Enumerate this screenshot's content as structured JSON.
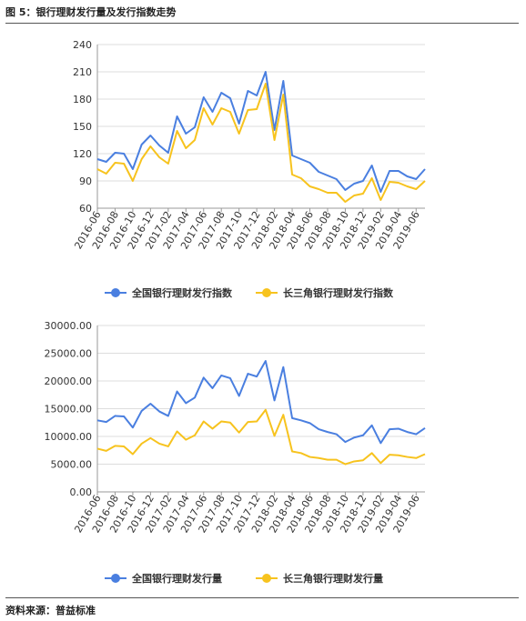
{
  "page": {
    "figure_title": "图 5：银行理财发行量及发行指数走势",
    "source": "资料来源：普益标准"
  },
  "colors": {
    "blue": "#4a7fe0",
    "yellow": "#f7c31e",
    "grid": "#dddddd",
    "axis": "#999999"
  },
  "chart_data": [
    {
      "type": "line",
      "title": "",
      "xlabel": "",
      "ylabel": "",
      "ylim": [
        60,
        240
      ],
      "yticks": [
        "60",
        "90",
        "120",
        "150",
        "180",
        "210",
        "240"
      ],
      "xtick_labels": [
        "2016-06",
        "2016-08",
        "2016-10",
        "2016-12",
        "2017-02",
        "2017-04",
        "2017-06",
        "2017-08",
        "2017-10",
        "2017-12",
        "2018-02",
        "2018-04",
        "2018-06",
        "2018-08",
        "2018-10",
        "2018-12",
        "2019-02",
        "2019-04",
        "2019-06"
      ],
      "x": [
        "2016-06",
        "2016-07",
        "2016-08",
        "2016-09",
        "2016-10",
        "2016-11",
        "2016-12",
        "2017-01",
        "2017-02",
        "2017-03",
        "2017-04",
        "2017-05",
        "2017-06",
        "2017-07",
        "2017-08",
        "2017-09",
        "2017-10",
        "2017-11",
        "2017-12",
        "2018-01",
        "2018-02",
        "2018-03",
        "2018-04",
        "2018-05",
        "2018-06",
        "2018-07",
        "2018-08",
        "2018-09",
        "2018-10",
        "2018-11",
        "2018-12",
        "2019-01",
        "2019-02",
        "2019-03",
        "2019-04",
        "2019-05",
        "2019-06",
        "2019-07"
      ],
      "series": [
        {
          "name": "全国银行理财发行指数",
          "color": "#4a7fe0",
          "values": [
            114,
            111,
            121,
            120,
            103,
            130,
            140,
            129,
            121,
            161,
            142,
            149,
            182,
            166,
            187,
            181,
            153,
            189,
            184,
            210,
            146,
            200,
            118,
            114,
            110,
            100,
            96,
            92,
            80,
            87,
            90,
            107,
            78,
            101,
            101,
            95,
            92,
            103
          ]
        },
        {
          "name": "长三角银行理财发行指数",
          "color": "#f7c31e",
          "values": [
            103,
            98,
            110,
            109,
            90,
            114,
            128,
            116,
            109,
            145,
            126,
            135,
            170,
            152,
            170,
            166,
            142,
            168,
            169,
            197,
            135,
            185,
            97,
            93,
            84,
            81,
            77,
            77,
            67,
            74,
            76,
            93,
            69,
            89,
            88,
            84,
            81,
            90
          ]
        }
      ],
      "grid": true,
      "legend": "bottom-center"
    },
    {
      "type": "line",
      "title": "",
      "xlabel": "",
      "ylabel": "",
      "ylim": [
        0,
        30000
      ],
      "yticks": [
        "0.00",
        "5000.00",
        "10000.00",
        "15000.00",
        "20000.00",
        "25000.00",
        "30000.00"
      ],
      "xtick_labels": [
        "2016-06",
        "2016-08",
        "2016-10",
        "2016-12",
        "2017-02",
        "2017-04",
        "2017-06",
        "2017-08",
        "2017-10",
        "2017-12",
        "2018-02",
        "2018-04",
        "2018-06",
        "2018-08",
        "2018-10",
        "2018-12",
        "2019-02",
        "2019-04",
        "2019-06"
      ],
      "x": [
        "2016-06",
        "2016-07",
        "2016-08",
        "2016-09",
        "2016-10",
        "2016-11",
        "2016-12",
        "2017-01",
        "2017-02",
        "2017-03",
        "2017-04",
        "2017-05",
        "2017-06",
        "2017-07",
        "2017-08",
        "2017-09",
        "2017-10",
        "2017-11",
        "2017-12",
        "2018-01",
        "2018-02",
        "2018-03",
        "2018-04",
        "2018-05",
        "2018-06",
        "2018-07",
        "2018-08",
        "2018-09",
        "2018-10",
        "2018-11",
        "2018-12",
        "2019-01",
        "2019-02",
        "2019-03",
        "2019-04",
        "2019-05",
        "2019-06",
        "2019-07"
      ],
      "series": [
        {
          "name": "全国银行理财发行量",
          "color": "#4a7fe0",
          "values": [
            12900,
            12600,
            13700,
            13600,
            11600,
            14600,
            15900,
            14500,
            13700,
            18100,
            16000,
            17000,
            20600,
            18700,
            21000,
            20500,
            17300,
            21300,
            20800,
            23600,
            16500,
            22500,
            13300,
            12900,
            12400,
            11300,
            10800,
            10400,
            9000,
            9800,
            10200,
            12000,
            8800,
            11300,
            11400,
            10800,
            10400,
            11500
          ]
        },
        {
          "name": "长三角银行理财发行量",
          "color": "#f7c31e",
          "values": [
            7800,
            7400,
            8300,
            8200,
            6800,
            8700,
            9700,
            8700,
            8200,
            10900,
            9400,
            10200,
            12700,
            11400,
            12700,
            12500,
            10700,
            12600,
            12700,
            14800,
            10100,
            13900,
            7300,
            7000,
            6300,
            6100,
            5800,
            5800,
            5000,
            5500,
            5700,
            7000,
            5200,
            6700,
            6600,
            6300,
            6100,
            6800
          ]
        }
      ],
      "grid": true,
      "legend": "bottom-center"
    }
  ]
}
